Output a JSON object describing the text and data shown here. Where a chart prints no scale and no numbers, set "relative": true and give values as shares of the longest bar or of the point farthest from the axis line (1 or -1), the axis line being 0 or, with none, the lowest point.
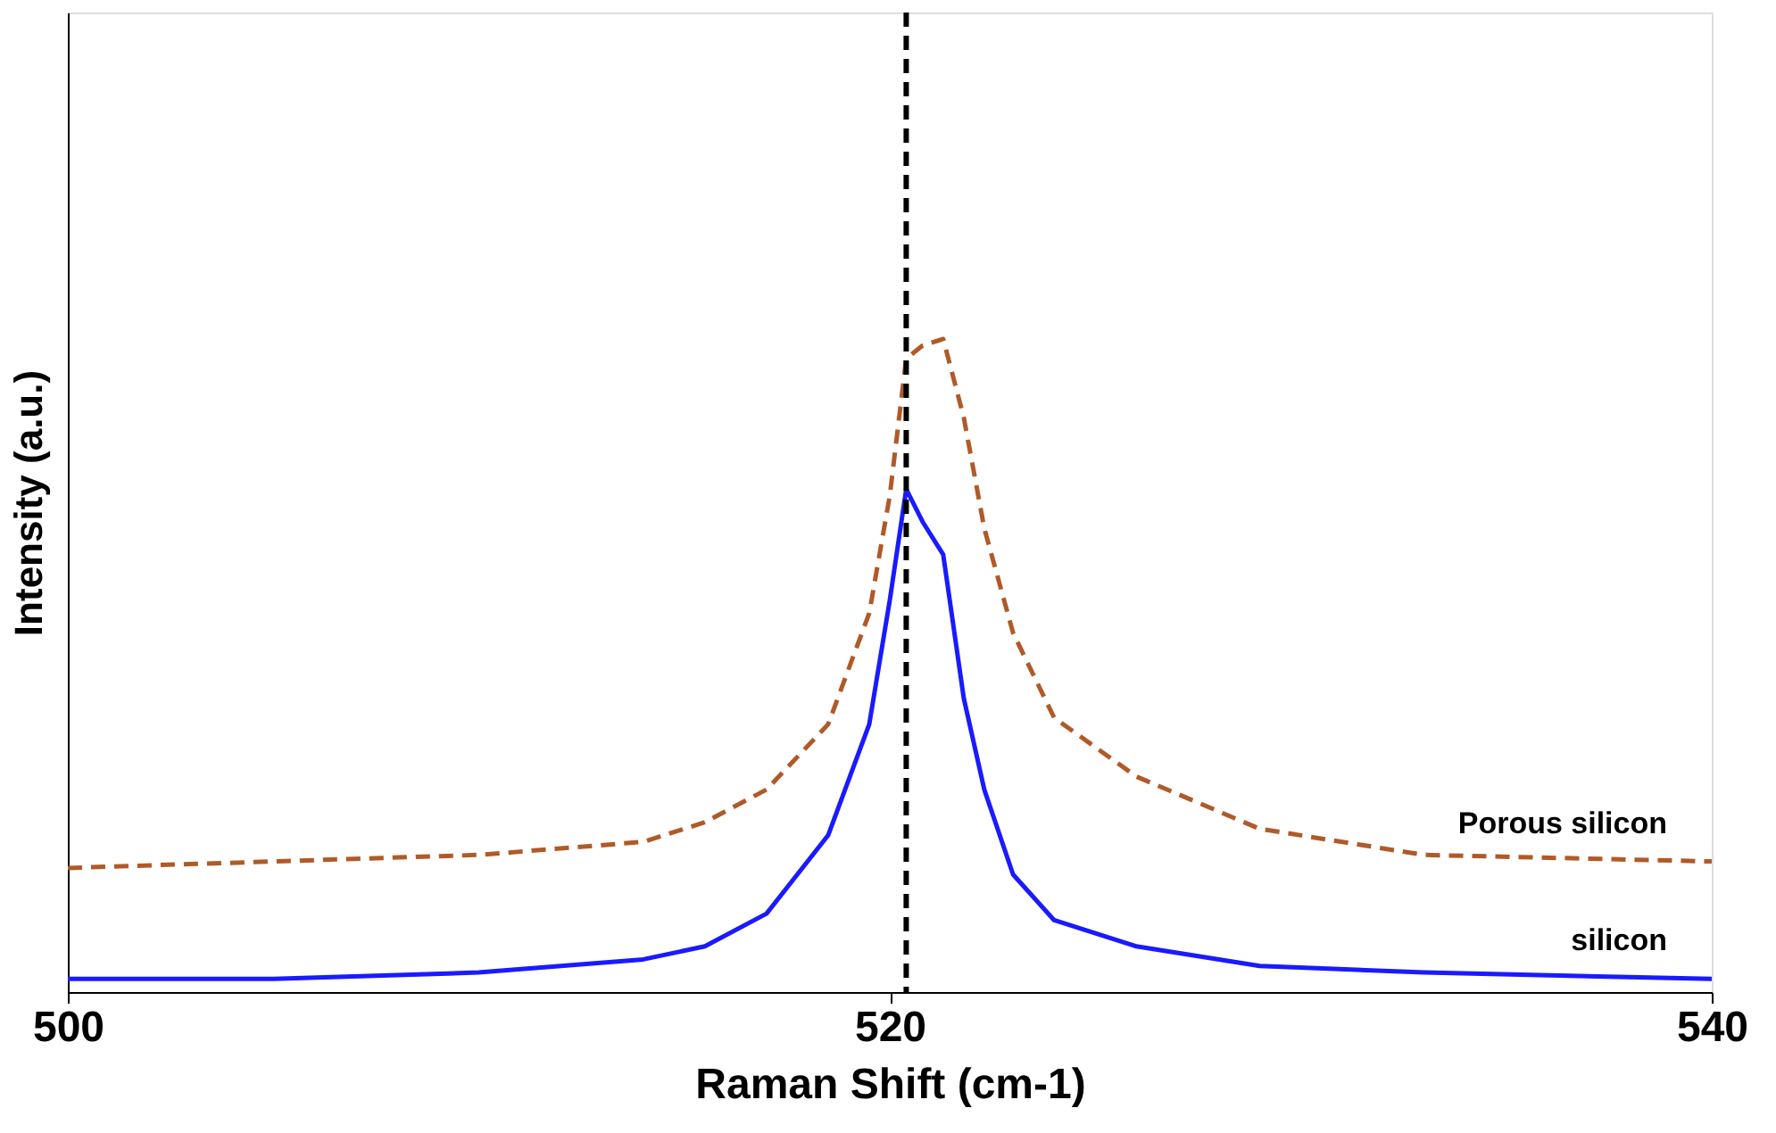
{
  "chart_data": {
    "type": "line",
    "relative": true,
    "xlabel": "Raman Shift (cm-1)",
    "ylabel": "Intensity (a.u.)",
    "xlim": [
      500,
      540
    ],
    "xticks": [
      500,
      520,
      540
    ],
    "x": [
      500,
      505,
      510,
      514,
      515.5,
      517,
      518.5,
      519.5,
      520,
      520.4,
      520.8,
      521.3,
      521.8,
      522.3,
      523,
      524,
      526,
      529,
      533,
      540
    ],
    "ref_lines": [
      {
        "axis": "x",
        "value": 520.4,
        "color": "#000000",
        "line_style": "dashed"
      }
    ],
    "series": [
      {
        "name": "Porous silicon",
        "color": "#b05a28",
        "line_style": "dashed",
        "values": [
          0.19,
          0.2,
          0.21,
          0.23,
          0.26,
          0.31,
          0.41,
          0.58,
          0.76,
          0.97,
          0.99,
          1.0,
          0.88,
          0.71,
          0.55,
          0.42,
          0.33,
          0.25,
          0.21,
          0.2
        ]
      },
      {
        "name": "silicon",
        "color": "#1a1aff",
        "line_style": "solid",
        "values": [
          0.02,
          0.02,
          0.03,
          0.05,
          0.07,
          0.12,
          0.24,
          0.41,
          0.6,
          0.77,
          0.72,
          0.67,
          0.45,
          0.31,
          0.18,
          0.11,
          0.07,
          0.04,
          0.03,
          0.02
        ]
      }
    ]
  }
}
